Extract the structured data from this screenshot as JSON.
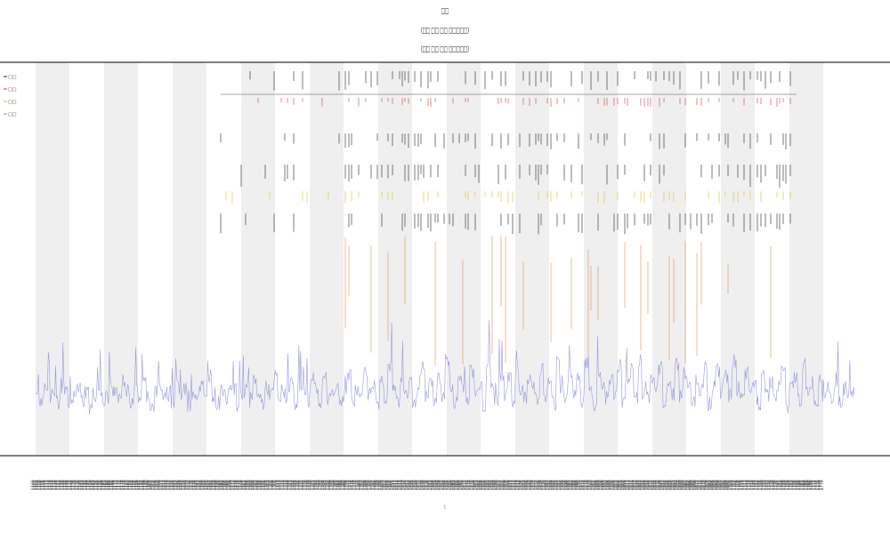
{
  "chart_data": {
    "type": "line",
    "title": "□□",
    "subtitles": [
      "(□□ □□ □□ □□□□□)",
      "(□□ □□ □□ □□□□□)"
    ],
    "xlabel": "t",
    "ylabel": "",
    "grid": false,
    "legend_placement": "top-left",
    "legend_entries": [
      "□□",
      "□□",
      "□□",
      "□□"
    ],
    "y_tick_labels": [
      "",
      ""
    ],
    "x_tick_labels": [
      "1100",
      "1101",
      "1102",
      "1103",
      "1104",
      "1105",
      "1106",
      "1107",
      "1108",
      "1109",
      "1110",
      "1111",
      "1112",
      "1113",
      "1114",
      "1115",
      "1116",
      "1117",
      "1118",
      "1119",
      "1120",
      "1121",
      "1122",
      "1123",
      "1124",
      "1125",
      "1126",
      "1127",
      "1128",
      "1129",
      "1130",
      "1131",
      "1132",
      "1133",
      "1134",
      "1135",
      "1136",
      "1137",
      "1138",
      "1139",
      "1140",
      "1141",
      "1142",
      "1143",
      "1144",
      "1145",
      "1146",
      "1147",
      "1148",
      "1149",
      "1150",
      "1151",
      "1152",
      "1153",
      "1154",
      "1155",
      "1156",
      "1157",
      "1158",
      "1159",
      "1160",
      "1161",
      "1162",
      "1163",
      "1164",
      "1165",
      "1166",
      "1167",
      "1168",
      "1169",
      "1170",
      "1171",
      "1172",
      "1173",
      "1174",
      "1175",
      "1176",
      "1177",
      "1178",
      "1179",
      "1180",
      "1181",
      "1182",
      "1183",
      "1184",
      "1185",
      "1186",
      "1187",
      "1188",
      "1189",
      "1190",
      "1191",
      "1192",
      "1193",
      "1194",
      "1195",
      "1196",
      "1197",
      "1198",
      "1199",
      "1200",
      "1201",
      "1202",
      "1203",
      "1204",
      "1205",
      "1206",
      "1207",
      "1208",
      "1209",
      "1210",
      "1211",
      "1212",
      "1213",
      "1214",
      "1215",
      "1216",
      "1217",
      "1218",
      "1219",
      "1220",
      "1221",
      "1222",
      "1223",
      "1224",
      "1225",
      "1226",
      "1227",
      "1228",
      "1229",
      "1230",
      "1231",
      "1232",
      "1233",
      "1234",
      "1235",
      "1236",
      "1237",
      "1238",
      "1239",
      "1240",
      "1241",
      "1242",
      "1243",
      "1244",
      "1245",
      "1246",
      "1247",
      "1248",
      "1249",
      "1250",
      "1251",
      "1252",
      "1253",
      "1254",
      "1255",
      "1256",
      "1257",
      "1258",
      "1259",
      "1260",
      "1261",
      "1262",
      "1263",
      "1264",
      "1265",
      "1266",
      "1267",
      "1268",
      "1269",
      "1270",
      "1271",
      "1272",
      "1273",
      "1274",
      "1275",
      "1276",
      "1277",
      "1278",
      "1279",
      "1280",
      "1281",
      "1282",
      "1283",
      "1284",
      "1285",
      "1286",
      "1287",
      "1288",
      "1289",
      "1290",
      "1291",
      "1292",
      "1293",
      "1294",
      "1295",
      "1296",
      "1297",
      "1298",
      "1299",
      "1300",
      "1301",
      "1302",
      "1303",
      "1304",
      "1305",
      "1306",
      "1307",
      "1308",
      "1309",
      "1310",
      "1311",
      "1312",
      "1313",
      "1314",
      "1315",
      "1316",
      "1317",
      "1318",
      "1319",
      "1320",
      "1321",
      "1322",
      "1323",
      "1324",
      "1325",
      "1326",
      "1327",
      "1328",
      "1329",
      "1330",
      "1331",
      "1332",
      "1333",
      "1334",
      "1335",
      "1336",
      "1337",
      "1338",
      "1339",
      "1340",
      "1341",
      "1342",
      "1343",
      "1344",
      "1345",
      "1346",
      "1347",
      "1348",
      "1349",
      "1350",
      "1351",
      "1352",
      "1353",
      "1354",
      "1355",
      "1356",
      "1357",
      "1358",
      "1359",
      "1360",
      "1361",
      "1362",
      "1363",
      "1364",
      "1365",
      "1366",
      "1367",
      "1368",
      "1369",
      "1370",
      "1371",
      "1372",
      "1373",
      "1374",
      "1375",
      "1376",
      "1377",
      "1378",
      "1379",
      "1380",
      "1381",
      "1382",
      "1383",
      "1384",
      "1385",
      "1386",
      "1387",
      "1388",
      "1389",
      "1390",
      "1391",
      "1392",
      "1393",
      "1394",
      "1395",
      "1396",
      "1397",
      "1398",
      "1399",
      "1400",
      "1401",
      "1402",
      "1403",
      "1404",
      "1405",
      "1406",
      "1407",
      "1408",
      "1409",
      "1410",
      "1411",
      "1412",
      "1413",
      "1414",
      "1415",
      "1416",
      "1417",
      "1418",
      "1419",
      "1420",
      "1421",
      "1422",
      "1423",
      "1424",
      "1425",
      "1426",
      "1427",
      "1428",
      "1429",
      "1430",
      "1431",
      "1432",
      "1433",
      "1434",
      "1435",
      "1436",
      "1437",
      "1438",
      "1439",
      "1440",
      "1441",
      "1442",
      "1443",
      "1444",
      "1445",
      "1446",
      "1447",
      "1448",
      "1449",
      "1450",
      "1451",
      "1452",
      "1453",
      "1454",
      "1455",
      "1456",
      "1457",
      "1458",
      "1459",
      "1460",
      "1461",
      "1462",
      "1463",
      "1464",
      "1465",
      "1466",
      "1467",
      "1468",
      "1469",
      "1470",
      "1471",
      "1472",
      "1473",
      "1474",
      "1475",
      "1476",
      "1477",
      "1478",
      "1479",
      "1480",
      "1481",
      "1482",
      "1483",
      "1484",
      "1485",
      "1486",
      "1487",
      "1488",
      "1489",
      "1490",
      "1491",
      "1492",
      "1493",
      "1494",
      "1495",
      "1496",
      "1497",
      "1498",
      "1499",
      "1500",
      "1501",
      "1502",
      "1503",
      "1504",
      "1505",
      "1506",
      "1507",
      "1508",
      "1509",
      "1510",
      "1511",
      "1512",
      "1513",
      "1514",
      "1515",
      "1516",
      "1517",
      "1518",
      "1519",
      "1520",
      "1521",
      "1522",
      "1523",
      "1524",
      "1525",
      "1526",
      "1527",
      "1528",
      "1529",
      "1530",
      "1531",
      "1532",
      "1533",
      "1534",
      "1535",
      "1536",
      "1537",
      "1538",
      "1539",
      "1540",
      "1541",
      "1542",
      "1543",
      "1544",
      "1545",
      "1546",
      "1547",
      "1548",
      "1549",
      "1550",
      "1551",
      "1552",
      "1553",
      "1554",
      "1555",
      "1556",
      "1557",
      "1558",
      "1559",
      "1560",
      "1561",
      "1562",
      "1563",
      "1564",
      "1565",
      "1566",
      "1567",
      "1568",
      "1569",
      "1570",
      "1571",
      "1572",
      "1573",
      "1574",
      "1575",
      "1576",
      "1577",
      "1578",
      "1579",
      "1580",
      "1581",
      "1582",
      "1583",
      "1584",
      "1585",
      "1586",
      "1587",
      "1588",
      "1589",
      "1590",
      "1591",
      "1592",
      "1593",
      "1594",
      "1595",
      "1596",
      "1597",
      "1598",
      "1599",
      "1600",
      "1601",
      "1602",
      "1603",
      "1604",
      "1605",
      "1606",
      "1607",
      "1608",
      "1609",
      "1610",
      "1611",
      "1612",
      "1613",
      "1614",
      "1615",
      "1616",
      "1617",
      "1618",
      "1619",
      "1620",
      "1621",
      "1622",
      "1623",
      "1624",
      "1625",
      "1626",
      "1627",
      "1628",
      "1629",
      "1630",
      "1631",
      "1632",
      "1633",
      "1634",
      "1635",
      "1636",
      "1637",
      "1638",
      "1639",
      "1640",
      "1641",
      "1642",
      "1643",
      "1644",
      "1645",
      "1646",
      "1647",
      "1648",
      "1649",
      "1650",
      "1651",
      "1652",
      "1653",
      "1654",
      "1655",
      "1656",
      "1657",
      "1658",
      "1659",
      "1660",
      "1661",
      "1662",
      "1663",
      "1664",
      "1665",
      "1666",
      "1667",
      "1668",
      "1669",
      "1670",
      "1671",
      "1672",
      "1673",
      "1674",
      "1675",
      "1676",
      "1677",
      "1678",
      "1679",
      "1680",
      "1681",
      "1682",
      "1683",
      "1684",
      "1685",
      "1686",
      "1687",
      "1688",
      "1689",
      "1690",
      "1691",
      "1692",
      "1693",
      "1694",
      "1695",
      "1696",
      "1697",
      "1698",
      "1699",
      "1700",
      "1701",
      "1702",
      "1703",
      "1704",
      "1705",
      "1706",
      "1707",
      "1708",
      "1709",
      "1710",
      "1711",
      "1712",
      "1713",
      "1714",
      "1715",
      "1716",
      "1717",
      "1718",
      "1719",
      "1720",
      "1721",
      "1722",
      "1723",
      "1724",
      "1725",
      "1726",
      "1727",
      "1728",
      "1729",
      "1730",
      "1731",
      "1732",
      "1733",
      "1734",
      "1735",
      "1736",
      "1737",
      "1738",
      "1739",
      "1740",
      "1741",
      "1742",
      "1743",
      "1744",
      "1745",
      "1746",
      "1747",
      "1748",
      "1749",
      "1750",
      "1751",
      "1752",
      "1753",
      "1754",
      "1755",
      "1756",
      "1757",
      "1758",
      "1759",
      "1760",
      "1761",
      "1762",
      "1763",
      "1764",
      "1765",
      "1766",
      "1767",
      "1768",
      "1769",
      "1770",
      "1771",
      "1772",
      "1773",
      "1774",
      "1775",
      "1776",
      "1777",
      "1778",
      "1779"
    ],
    "bands": 23,
    "band_fill": "#efefef",
    "colors": {
      "line": "#8888dd",
      "red_ticks": "#d23b3b",
      "black_ticks": "#222222",
      "yellow_ticks": "#d8c21a",
      "orange_spikes": "#e0762a",
      "axis": "#333333"
    },
    "baseline": [
      50,
      48,
      52,
      49,
      51,
      47,
      53,
      50,
      46,
      49,
      52,
      48,
      51,
      45,
      50,
      53,
      47,
      49,
      52,
      50,
      48,
      55,
      51,
      47,
      52,
      49,
      54,
      50,
      46,
      51,
      53,
      48,
      50,
      47,
      55,
      49,
      52,
      46,
      51,
      50,
      53,
      48,
      57,
      50,
      47,
      52,
      49,
      54,
      51,
      46,
      50,
      53,
      48,
      55,
      49,
      47,
      52,
      50,
      56,
      48,
      51,
      49,
      54,
      47,
      53,
      50,
      48,
      57,
      52,
      46,
      55,
      49,
      51,
      53,
      48,
      50,
      56,
      47,
      52,
      49,
      58,
      50,
      53,
      47,
      55,
      49,
      60,
      51,
      48,
      54,
      50,
      57,
      46,
      52,
      59,
      49,
      53,
      48,
      55,
      50,
      62,
      51,
      47,
      56,
      53,
      49,
      58,
      50,
      54,
      46,
      61,
      52,
      48,
      57,
      50,
      55,
      47,
      60,
      51,
      49,
      56,
      53,
      48,
      59,
      50,
      54,
      47,
      63,
      52,
      49,
      57,
      50,
      55,
      48,
      61,
      51,
      46,
      58,
      53,
      49,
      55,
      50,
      60,
      47,
      53,
      58,
      49,
      62,
      51,
      48,
      56,
      52,
      59,
      47,
      54,
      50,
      61,
      49,
      57,
      52,
      48,
      55,
      51,
      60,
      47,
      53,
      58,
      50,
      56,
      49,
      62,
      52,
      48,
      57,
      51,
      54,
      47,
      59,
      50,
      55,
      49,
      53,
      58,
      46,
      52,
      56,
      48,
      60,
      51,
      54,
      47,
      57,
      50,
      53,
      49,
      55,
      48,
      52,
      50,
      51
    ]
  }
}
